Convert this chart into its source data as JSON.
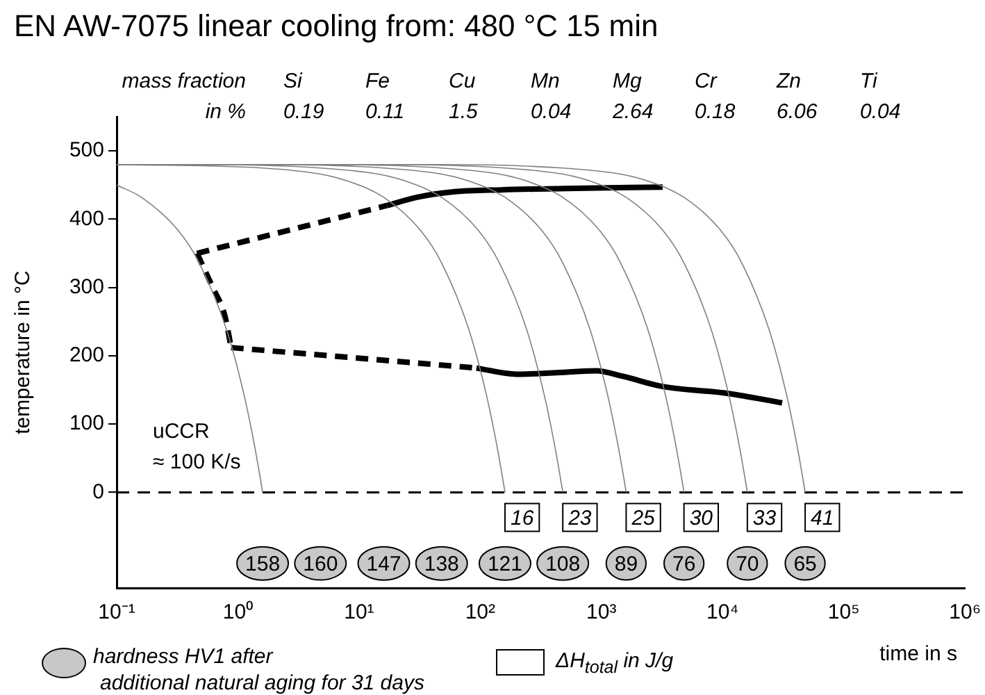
{
  "chart_data": {
    "type": "line",
    "title": "EN AW-7075 linear cooling from: 480 °C 15 min",
    "xlabel": "time in s",
    "ylabel": "temperature in °C",
    "log": "x",
    "xlim": [
      0.1,
      1000000
    ],
    "xticks": [
      {
        "value": 0.1,
        "label": "10⁻¹"
      },
      {
        "value": 1,
        "label": "10⁰"
      },
      {
        "value": 10,
        "label": "10¹"
      },
      {
        "value": 100,
        "label": "10²"
      },
      {
        "value": 1000,
        "label": "10³"
      },
      {
        "value": 10000,
        "label": "10⁴"
      },
      {
        "value": 100000,
        "label": "10⁵"
      },
      {
        "value": 1000000,
        "label": "10⁶"
      }
    ],
    "ylim": [
      -140,
      550
    ],
    "yticks": [
      0,
      100,
      200,
      300,
      400,
      500
    ],
    "grid": false,
    "ref_lines": [
      {
        "axis": "y",
        "value": 0,
        "color": "#000000",
        "line_style": "dashed"
      }
    ],
    "series": [
      {
        "color": "#808080",
        "line_style": "solid",
        "x": [
          0.1,
          0.16,
          0.32,
          0.48,
          0.8,
          1.12,
          1.36,
          1.52,
          1.6
        ],
        "values": [
          450,
          432,
          384,
          336,
          240,
          144,
          72,
          24,
          0
        ]
      },
      {
        "color": "#808080",
        "line_style": "solid",
        "x": [
          0.1,
          1.6,
          4.8,
          8,
          16,
          32,
          48,
          80,
          112,
          136,
          152,
          160
        ],
        "values": [
          480,
          475,
          466,
          456,
          432,
          384,
          336,
          240,
          144,
          72,
          24,
          0
        ]
      },
      {
        "color": "#808080",
        "line_style": "solid",
        "x": [
          0.1,
          0.48,
          4.8,
          14.4,
          24,
          48,
          96,
          144,
          240,
          336,
          408,
          456,
          480
        ],
        "values": [
          480,
          480,
          475,
          466,
          456,
          432,
          384,
          336,
          240,
          144,
          72,
          24,
          0
        ]
      },
      {
        "color": "#808080",
        "line_style": "solid",
        "x": [
          0.1,
          1.6,
          16,
          48,
          80,
          160,
          320,
          480,
          800,
          1120,
          1360,
          1520,
          1600
        ],
        "values": [
          480,
          480,
          475,
          466,
          456,
          432,
          384,
          336,
          240,
          144,
          72,
          24,
          0
        ]
      },
      {
        "color": "#808080",
        "line_style": "solid",
        "x": [
          0.1,
          4.8,
          48,
          144,
          240,
          480,
          960,
          1440,
          2400,
          3360,
          4080,
          4560,
          4800
        ],
        "values": [
          480,
          480,
          475,
          466,
          456,
          432,
          384,
          336,
          240,
          144,
          72,
          24,
          0
        ]
      },
      {
        "color": "#808080",
        "line_style": "solid",
        "x": [
          0.1,
          16,
          160,
          480,
          800,
          1600,
          3200,
          4800,
          8000,
          11200,
          13600,
          15200,
          16000
        ],
        "values": [
          480,
          480,
          475,
          466,
          456,
          432,
          384,
          336,
          240,
          144,
          72,
          24,
          0
        ]
      },
      {
        "color": "#808080",
        "line_style": "solid",
        "x": [
          0.1,
          48,
          480,
          1440,
          2400,
          4800,
          9600,
          14400,
          24000,
          33600,
          40800,
          45600,
          48000
        ],
        "values": [
          480,
          480,
          475,
          466,
          456,
          432,
          384,
          336,
          240,
          144,
          72,
          24,
          0
        ]
      },
      {
        "color": "#000000",
        "line_style": "dashed",
        "x": [
          0.46,
          17
        ],
        "values": [
          350,
          420
        ]
      },
      {
        "color": "#000000",
        "line_style": "solid",
        "x": [
          17,
          30,
          60,
          150,
          500,
          3200
        ],
        "values": [
          420,
          432,
          440,
          443,
          445,
          447
        ]
      },
      {
        "color": "#000000",
        "line_style": "dashed",
        "x": [
          0.46,
          0.62,
          0.78,
          0.88
        ],
        "values": [
          350,
          300,
          259,
          212
        ]
      },
      {
        "color": "#000000",
        "line_style": "dashed",
        "x": [
          0.88,
          93
        ],
        "values": [
          212,
          182
        ]
      },
      {
        "color": "#000000",
        "line_style": "solid",
        "x": [
          93,
          200,
          400,
          900,
          1500,
          3200,
          11000,
          31000
        ],
        "values": [
          182,
          173,
          175,
          178,
          170,
          155,
          145,
          131
        ]
      }
    ],
    "annotations": [
      "mass fraction",
      "Si",
      "Fe",
      "Cu",
      "Mn",
      "Mg",
      "Cr",
      "Zn",
      "Ti",
      "in %",
      "0.19",
      "0.11",
      "1.5",
      "0.04",
      "2.64",
      "0.18",
      "6.06",
      "0.04",
      "uCCR",
      "≈ 100 K/s",
      "hardness HV1 after",
      "additional natural aging for 31 days",
      "ΔH$_{total}$ in J/g",
      {
        "text": "16",
        "x": 160,
        "y": 0
      },
      {
        "text": "23",
        "x": 480,
        "y": 0
      },
      {
        "text": "25",
        "x": 1600,
        "y": 0
      },
      {
        "text": "30",
        "x": 4800,
        "y": 0
      },
      {
        "text": "33",
        "x": 16000,
        "y": 0
      },
      {
        "text": "41",
        "x": 48000,
        "y": 0
      },
      {
        "text": "158",
        "x": 1.6,
        "y": -104
      },
      {
        "text": "160",
        "x": 4.8,
        "y": -104
      },
      {
        "text": "147",
        "x": 16,
        "y": -104
      },
      {
        "text": "138",
        "x": 48,
        "y": -104
      },
      {
        "text": "121",
        "x": 160,
        "y": -104
      },
      {
        "text": "108",
        "x": 480,
        "y": -104
      },
      {
        "text": "89",
        "x": 1600,
        "y": -104
      },
      {
        "text": "76",
        "x": 4800,
        "y": -104
      },
      {
        "text": "70",
        "x": 16000,
        "y": -104
      },
      {
        "text": "65",
        "x": 48000,
        "y": -104
      }
    ]
  }
}
